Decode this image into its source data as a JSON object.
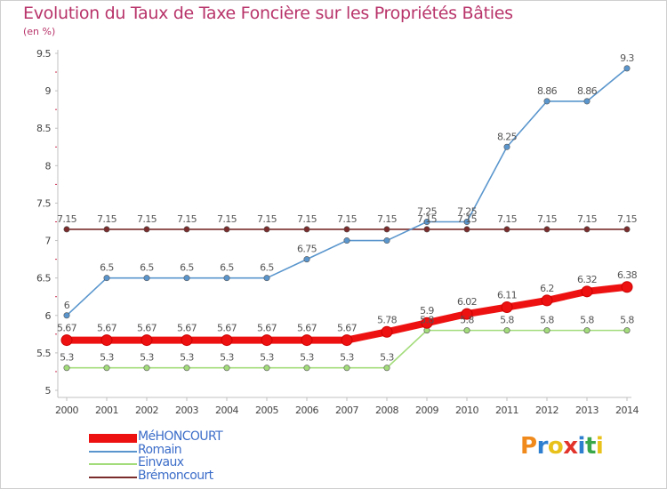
{
  "header": {
    "title": "Evolution du Taux de Taxe Foncière sur les Propriétés Bâties",
    "unit": "(en %)"
  },
  "logo": {
    "letters": [
      "P",
      "r",
      "o",
      "x",
      "i",
      "t",
      "i"
    ]
  },
  "colors": {
    "title": "#b8346a",
    "axis": "#c0c0c0",
    "tick_marks": "#cc3355",
    "legend_text": "#3d6ec9"
  },
  "chart_data": {
    "type": "line",
    "title": "Evolution du Taux de Taxe Foncière sur les Propriétés Bâties",
    "ylabel": "(en %)",
    "xlabel": "",
    "x": [
      "2000",
      "2001",
      "2002",
      "2003",
      "2004",
      "2005",
      "2006",
      "2007",
      "2008",
      "2009",
      "2010",
      "2011",
      "2012",
      "2013",
      "2014"
    ],
    "ylim": [
      5,
      9.5
    ],
    "yticks": [
      "5",
      "5.5",
      "6",
      "6.5",
      "7",
      "7.5",
      "8",
      "8.5",
      "9",
      "9.5"
    ],
    "grid": false,
    "legend_position": "bottom-left",
    "series": [
      {
        "name": "Brémoncourt",
        "color": "#7a2b2b",
        "width": "thin",
        "label_side": "above",
        "values": [
          7.15,
          7.15,
          7.15,
          7.15,
          7.15,
          7.15,
          7.15,
          7.15,
          7.15,
          7.15,
          7.15,
          7.15,
          7.15,
          7.15,
          7.15
        ],
        "labels": [
          "7.15",
          "7.15",
          "7.15",
          "7.15",
          "7.15",
          "7.15",
          "7.15",
          "7.15",
          "7.15",
          "7.15",
          "7.15",
          "7.15",
          "7.15",
          "7.15",
          "7.15"
        ]
      },
      {
        "name": "Einvaux",
        "color": "#a3dc7b",
        "width": "thin",
        "label_side": "above",
        "values": [
          5.3,
          5.3,
          5.3,
          5.3,
          5.3,
          5.3,
          5.3,
          5.3,
          5.3,
          5.8,
          5.8,
          5.8,
          5.8,
          5.8,
          5.8
        ],
        "labels": [
          "5.3",
          "5.3",
          "5.3",
          "5.3",
          "5.3",
          "5.3",
          "5.3",
          "5.3",
          "5.3",
          "5.8",
          "5.8",
          "5.8",
          "5.8",
          "5.8",
          "5.8"
        ]
      },
      {
        "name": "Romain",
        "color": "#5a96cd",
        "width": "thin",
        "label_side": "above",
        "values": [
          6,
          6.5,
          6.5,
          6.5,
          6.5,
          6.5,
          6.75,
          7,
          7,
          7.25,
          7.25,
          8.25,
          8.86,
          8.86,
          9.3
        ],
        "labels": [
          "6",
          "6.5",
          "6.5",
          "6.5",
          "6.5",
          "6.5",
          "6.75",
          "",
          "",
          "7.25",
          "7.25",
          "8.25",
          "8.86",
          "8.86",
          "9.3"
        ]
      },
      {
        "name": "MéHONCOURT",
        "color": "#ee1111",
        "width": "thick",
        "label_side": "above",
        "values": [
          5.67,
          5.67,
          5.67,
          5.67,
          5.67,
          5.67,
          5.67,
          5.67,
          5.78,
          5.9,
          6.02,
          6.11,
          6.2,
          6.32,
          6.38
        ],
        "labels": [
          "5.67",
          "5.67",
          "5.67",
          "5.67",
          "5.67",
          "5.67",
          "5.67",
          "5.67",
          "5.78",
          "5.9",
          "6.02",
          "6.11",
          "6.2",
          "6.32",
          "6.38"
        ]
      }
    ],
    "legend": [
      "MéHONCOURT",
      "Romain",
      "Einvaux",
      "Brémoncourt"
    ]
  }
}
